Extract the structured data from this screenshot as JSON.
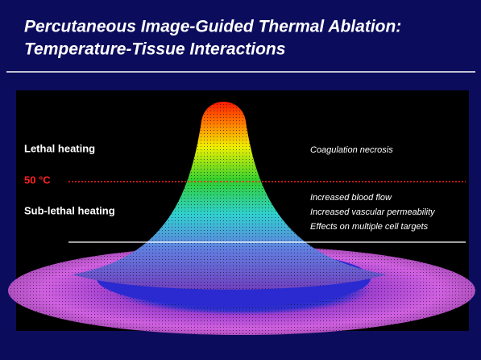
{
  "header": {
    "title_lines": [
      "Percutaneous Image-Guided Thermal Ablation:",
      "Temperature-Tissue Interactions"
    ]
  },
  "figure": {
    "left_labels": {
      "lethal": "Lethal heating",
      "threshold": "50 °C",
      "sublethal": "Sub-lethal heating"
    },
    "right_labels": {
      "lethal_effects": [
        "Coagulation necrosis"
      ],
      "sublethal_effects": [
        "Increased blood flow",
        "Increased vascular permeability",
        "Effects on multiple cell targets"
      ]
    }
  }
}
